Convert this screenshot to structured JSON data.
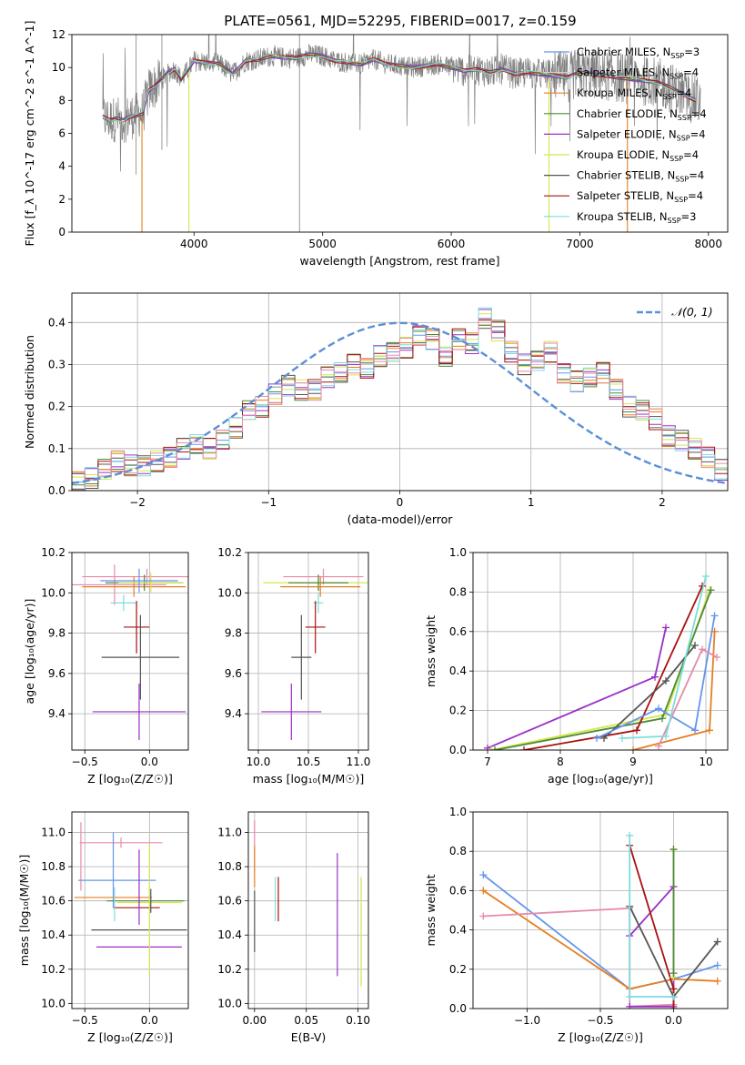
{
  "title": "PLATE=0561, MJD=52295, FIBERID=0017, z=0.159",
  "colors": {
    "chabrier_miles": "#6495ed",
    "salpeter_miles": "#d3d3d3",
    "kroupa_miles": "#e67e22",
    "chabrier_elodie": "#4d8a3a",
    "salpeter_elodie": "#9b30c7",
    "kroupa_elodie": "#d4e84a",
    "chabrier_stelib": "#555555",
    "salpeter_stelib": "#aa1111",
    "kroupa_stelib": "#7fdcdc",
    "pink": "#e88aa8",
    "data": "#808080"
  },
  "chart_data": [
    {
      "id": "spectrum",
      "type": "line",
      "xlabel": "wavelength [Angstrom, rest frame]",
      "ylabel": "Flux [f_λ 10^-17 erg cm^-2 s^-1 A^-1]",
      "xlim": [
        3050,
        8150
      ],
      "ylim": [
        0,
        12
      ],
      "xticks": [
        "4000",
        "5000",
        "6000",
        "7000",
        "8000"
      ],
      "yticks": [
        "0",
        "2",
        "4",
        "6",
        "8",
        "10",
        "12"
      ],
      "grid": false,
      "legend_position": "right",
      "legend": [
        {
          "label": "Chabrier MILES, N",
          "sub": "SSP",
          "tail": "=3",
          "color": "#6495ed"
        },
        {
          "label": "Salpeter MILES, N",
          "sub": "SSP",
          "tail": "=4",
          "color": "#d3d3d3"
        },
        {
          "label": "Kroupa MILES, N",
          "sub": "SSP",
          "tail": "=4",
          "color": "#e67e22"
        },
        {
          "label": "Chabrier ELODIE, N",
          "sub": "SSP",
          "tail": "=4",
          "color": "#4d8a3a"
        },
        {
          "label": "Salpeter ELODIE, N",
          "sub": "SSP",
          "tail": "=4",
          "color": "#9b30c7"
        },
        {
          "label": "Kroupa ELODIE, N",
          "sub": "SSP",
          "tail": "=4",
          "color": "#d4e84a"
        },
        {
          "label": "Chabrier STELIB, N",
          "sub": "SSP",
          "tail": "=4",
          "color": "#555555"
        },
        {
          "label": "Salpeter STELIB, N",
          "sub": "SSP",
          "tail": "=4",
          "color": "#aa1111"
        },
        {
          "label": "Kroupa STELIB, N",
          "sub": "SSP",
          "tail": "=3",
          "color": "#7fdcdc"
        }
      ],
      "model_curve": {
        "x": [
          3290,
          3350,
          3400,
          3450,
          3500,
          3550,
          3600,
          3650,
          3700,
          3750,
          3800,
          3850,
          3900,
          3950,
          4000,
          4100,
          4200,
          4300,
          4400,
          4500,
          4600,
          4700,
          4800,
          4900,
          5000,
          5100,
          5200,
          5300,
          5400,
          5500,
          5600,
          5700,
          5800,
          5900,
          6000,
          6100,
          6200,
          6300,
          6400,
          6500,
          6600,
          6700,
          6800,
          6900,
          7000,
          7100,
          7200,
          7300,
          7400,
          7500,
          7600,
          7700,
          7800,
          7900
        ],
        "y": [
          7.0,
          6.8,
          6.9,
          6.8,
          7.0,
          7.1,
          7.2,
          8.6,
          8.9,
          9.3,
          9.7,
          9.9,
          9.3,
          9.8,
          10.4,
          10.3,
          10.2,
          9.6,
          10.4,
          10.5,
          10.7,
          10.6,
          10.6,
          10.8,
          10.7,
          10.4,
          10.3,
          10.2,
          10.5,
          10.2,
          10.1,
          10.0,
          10.1,
          10.2,
          10.0,
          9.8,
          9.9,
          9.7,
          9.9,
          9.6,
          9.7,
          9.6,
          9.5,
          9.4,
          9.7,
          9.6,
          9.5,
          9.4,
          9.3,
          9.2,
          9.1,
          8.8,
          8.4,
          8.0
        ]
      },
      "drops": [
        {
          "x": 3595,
          "color": "#e67e22"
        },
        {
          "x": 3960,
          "color": "#d4e84a"
        },
        {
          "x": 6760,
          "color": "#d4e84a"
        },
        {
          "x": 7370,
          "color": "#e67e22"
        }
      ]
    },
    {
      "id": "residuals",
      "type": "bar",
      "xlabel": "(data-model)/error",
      "ylabel": "Normed distribution",
      "xlim": [
        -2.5,
        2.5
      ],
      "ylim": [
        0,
        0.47
      ],
      "xticks": [
        "−2",
        "−1",
        "0",
        "1",
        "2"
      ],
      "yticks": [
        "0.0",
        "0.1",
        "0.2",
        "0.3",
        "0.4"
      ],
      "grid": true,
      "legend_position": "top-right",
      "legend": [
        {
          "label": "𝒩(0, 1)",
          "style": "dashed",
          "color": "#5b8fd6"
        }
      ],
      "bin_width": 0.1,
      "bin_start": -2.5,
      "series": [
        {
          "name": "Chabrier MILES",
          "color": "#6495ed",
          "values": [
            0.02,
            0.03,
            0.05,
            0.07,
            0.06,
            0.06,
            0.07,
            0.08,
            0.1,
            0.11,
            0.1,
            0.12,
            0.15,
            0.19,
            0.2,
            0.23,
            0.25,
            0.24,
            0.24,
            0.27,
            0.28,
            0.3,
            0.29,
            0.32,
            0.33,
            0.34,
            0.37,
            0.36,
            0.32,
            0.36,
            0.35,
            0.41,
            0.38,
            0.33,
            0.3,
            0.31,
            0.33,
            0.28,
            0.26,
            0.27,
            0.28,
            0.24,
            0.2,
            0.19,
            0.17,
            0.13,
            0.12,
            0.1,
            0.08,
            0.05
          ]
        }
      ],
      "normal_curve": "N(0,1)"
    },
    {
      "id": "age_vs_Z",
      "type": "scatter",
      "xlabel": "Z [log₁₀(Z/Z☉)]",
      "ylabel": "age  [log₁₀(age/yr)]",
      "xlim": [
        -0.6,
        0.3
      ],
      "ylim": [
        9.22,
        10.2
      ],
      "xticks": [
        "−0.5",
        "0.0"
      ],
      "yticks": [
        "9.4",
        "9.6",
        "9.8",
        "10.0",
        "10.2"
      ],
      "grid": true,
      "points": [
        {
          "x": -0.27,
          "y": 10.04,
          "xerr": 0.4,
          "yerr": 0.1,
          "color": "#e88aa8"
        },
        {
          "x": -0.02,
          "y": 10.08,
          "xerr": 0.5,
          "yerr": 0.04,
          "color": "#e88aa8"
        },
        {
          "x": -0.12,
          "y": 10.03,
          "xerr": 0.4,
          "yerr": 0.05,
          "color": "#e67e22"
        },
        {
          "x": -0.04,
          "y": 10.05,
          "xerr": 0.3,
          "yerr": 0.04,
          "color": "#4d8a3a"
        },
        {
          "x": 0.01,
          "y": 10.05,
          "xerr": 0.25,
          "yerr": 0.05,
          "color": "#d4e84a"
        },
        {
          "x": -0.08,
          "y": 10.06,
          "xerr": 0.3,
          "yerr": 0.06,
          "color": "#6495ed"
        },
        {
          "x": -0.2,
          "y": 9.95,
          "xerr": 0.1,
          "yerr": 0.04,
          "color": "#7fdcdc"
        },
        {
          "x": -0.1,
          "y": 9.83,
          "xerr": 0.1,
          "yerr": 0.13,
          "color": "#aa1111"
        },
        {
          "x": -0.07,
          "y": 9.68,
          "xerr": 0.3,
          "yerr": 0.21,
          "color": "#555555"
        },
        {
          "x": -0.08,
          "y": 9.41,
          "xerr": 0.36,
          "yerr": 0.14,
          "color": "#9b30c7"
        }
      ]
    },
    {
      "id": "age_vs_mass",
      "type": "scatter",
      "xlabel": "mass [log₁₀(M/M☉)]",
      "ylabel": "",
      "xlim": [
        9.9,
        11.1
      ],
      "ylim": [
        9.22,
        10.2
      ],
      "xticks": [
        "10.0",
        "10.5",
        "11.0"
      ],
      "yticks": [
        "9.4",
        "9.6",
        "9.8",
        "10.0",
        "10.2"
      ],
      "grid": true,
      "points": [
        {
          "x": 10.65,
          "y": 10.08,
          "xerr": 0.4,
          "yerr": 0.04,
          "color": "#e88aa8"
        },
        {
          "x": 10.6,
          "y": 10.05,
          "xerr": 0.55,
          "yerr": 0.04,
          "color": "#d4e84a"
        },
        {
          "x": 10.6,
          "y": 10.05,
          "xerr": 0.3,
          "yerr": 0.04,
          "color": "#4d8a3a"
        },
        {
          "x": 10.62,
          "y": 10.03,
          "xerr": 0.4,
          "yerr": 0.05,
          "color": "#e67e22"
        },
        {
          "x": 10.6,
          "y": 9.95,
          "xerr": 0.05,
          "yerr": 0.05,
          "color": "#7fdcdc"
        },
        {
          "x": 10.57,
          "y": 9.83,
          "xerr": 0.1,
          "yerr": 0.13,
          "color": "#aa1111"
        },
        {
          "x": 10.43,
          "y": 9.68,
          "xerr": 0.1,
          "yerr": 0.21,
          "color": "#555555"
        },
        {
          "x": 10.33,
          "y": 9.41,
          "xerr": 0.3,
          "yerr": 0.14,
          "color": "#9b30c7"
        }
      ]
    },
    {
      "id": "weight_vs_age",
      "type": "line",
      "xlabel": "age  [log₁₀(age/yr)]",
      "ylabel": "mass weight",
      "xlim": [
        6.8,
        10.3
      ],
      "ylim": [
        0,
        1
      ],
      "xticks": [
        "7",
        "8",
        "9",
        "10"
      ],
      "yticks": [
        "0.0",
        "0.2",
        "0.4",
        "0.6",
        "0.8",
        "1.0"
      ],
      "grid": true,
      "series": [
        {
          "color": "#9b30c7",
          "x": [
            7.0,
            9.3,
            9.45
          ],
          "y": [
            0.01,
            0.37,
            0.62
          ]
        },
        {
          "color": "#d4e84a",
          "x": [
            7.05,
            9.45,
            10.05
          ],
          "y": [
            0.0,
            0.18,
            0.81
          ]
        },
        {
          "color": "#4d8a3a",
          "x": [
            7.1,
            9.4,
            10.07
          ],
          "y": [
            0.0,
            0.16,
            0.81
          ]
        },
        {
          "color": "#aa1111",
          "x": [
            7.5,
            9.05,
            9.95
          ],
          "y": [
            0.0,
            0.1,
            0.83
          ]
        },
        {
          "color": "#555555",
          "x": [
            8.6,
            9.45,
            9.85
          ],
          "y": [
            0.06,
            0.35,
            0.53
          ]
        },
        {
          "color": "#6495ed",
          "x": [
            8.5,
            9.35,
            9.85,
            10.12
          ],
          "y": [
            0.06,
            0.21,
            0.1,
            0.68
          ]
        },
        {
          "color": "#e67e22",
          "x": [
            9.0,
            10.05,
            10.12
          ],
          "y": [
            0.0,
            0.1,
            0.6
          ]
        },
        {
          "color": "#e88aa8",
          "x": [
            9.35,
            9.95,
            10.15
          ],
          "y": [
            0.02,
            0.51,
            0.47
          ]
        },
        {
          "color": "#7fdcdc",
          "x": [
            8.85,
            9.45,
            10.0
          ],
          "y": [
            0.06,
            0.07,
            0.88
          ]
        }
      ]
    },
    {
      "id": "mass_vs_Z",
      "type": "scatter",
      "xlabel": "Z [log₁₀(Z/Z☉)]",
      "ylabel": "mass [log₁₀(M/M☉)]",
      "xlim": [
        -0.6,
        0.3
      ],
      "ylim": [
        9.97,
        11.12
      ],
      "xticks": [
        "−0.5",
        "0.0"
      ],
      "yticks": [
        "10.0",
        "10.2",
        "10.4",
        "10.6",
        "10.8",
        "11.0"
      ],
      "grid": true,
      "points": [
        {
          "x": -0.22,
          "y": 10.94,
          "xerr": 0.32,
          "yerr": 0.03,
          "color": "#e88aa8"
        },
        {
          "x": -0.53,
          "y": 10.86,
          "xerr": 0.0,
          "yerr": 0.2,
          "color": "#e88aa8"
        },
        {
          "x": -0.25,
          "y": 10.72,
          "xerr": 0.3,
          "yerr": 0.0,
          "color": "#6495ed"
        },
        {
          "x": -0.28,
          "y": 10.78,
          "xerr": 0.0,
          "yerr": 0.22,
          "color": "#6495ed"
        },
        {
          "x": -0.28,
          "y": 10.62,
          "xerr": 0.3,
          "yerr": 0.0,
          "color": "#e67e22"
        },
        {
          "x": -0.03,
          "y": 10.6,
          "xerr": 0.3,
          "yerr": 0.0,
          "color": "#4d8a3a"
        },
        {
          "x": 0.0,
          "y": 10.59,
          "xerr": 0.25,
          "yerr": 0.0,
          "color": "#d4e84a"
        },
        {
          "x": -0.1,
          "y": 10.56,
          "xerr": 0.18,
          "yerr": 0.0,
          "color": "#aa1111"
        },
        {
          "x": -0.08,
          "y": 10.43,
          "xerr": 0.37,
          "yerr": 0.0,
          "color": "#555555"
        },
        {
          "x": -0.08,
          "y": 10.33,
          "xerr": 0.33,
          "yerr": 0.0,
          "color": "#9b30c7"
        },
        {
          "x": -0.08,
          "y": 10.68,
          "xerr": 0.0,
          "yerr": 0.22,
          "color": "#9b30c7"
        },
        {
          "x": 0.0,
          "y": 10.55,
          "xerr": 0.0,
          "yerr": 0.38,
          "color": "#d4e84a"
        },
        {
          "x": 0.01,
          "y": 10.6,
          "xerr": 0.0,
          "yerr": 0.07,
          "color": "#555555"
        },
        {
          "x": -0.27,
          "y": 10.58,
          "xerr": 0.0,
          "yerr": 0.1,
          "color": "#7fdcdc"
        }
      ]
    },
    {
      "id": "mass_vs_ebv",
      "type": "scatter",
      "xlabel": "E(B-V)",
      "ylabel": "",
      "xlim": [
        -0.006,
        0.11
      ],
      "ylim": [
        9.97,
        11.12
      ],
      "xticks": [
        "0.00",
        "0.05",
        "0.10"
      ],
      "yticks": [
        "10.0",
        "10.2",
        "10.4",
        "10.6",
        "10.8",
        "11.0"
      ],
      "grid": true,
      "points": [
        {
          "x": 0.0,
          "y": 10.92,
          "yerr": 0.15,
          "color": "#e88aa8"
        },
        {
          "x": 0.0,
          "y": 10.8,
          "yerr": 0.12,
          "color": "#e67e22"
        },
        {
          "x": 0.0,
          "y": 10.48,
          "yerr": 0.18,
          "color": "#555555"
        },
        {
          "x": 0.02,
          "y": 10.61,
          "yerr": 0.13,
          "color": "#7fdcdc"
        },
        {
          "x": 0.023,
          "y": 10.61,
          "yerr": 0.13,
          "color": "#aa1111"
        },
        {
          "x": 0.08,
          "y": 10.52,
          "yerr": 0.36,
          "color": "#9b30c7"
        },
        {
          "x": 0.103,
          "y": 10.42,
          "yerr": 0.32,
          "color": "#d4e84a"
        }
      ]
    },
    {
      "id": "weight_vs_Z",
      "type": "line",
      "xlabel": "Z [log₁₀(Z/Z☉)]",
      "ylabel": "mass weight",
      "xlim": [
        -1.37,
        0.37
      ],
      "ylim": [
        0,
        1
      ],
      "xticks": [
        "−1.0",
        "−0.5",
        "0.0"
      ],
      "yticks": [
        "0.0",
        "0.2",
        "0.4",
        "0.6",
        "0.8",
        "1.0"
      ],
      "grid": true,
      "series": [
        {
          "color": "#6495ed",
          "x": [
            -1.3,
            -0.3,
            0.0,
            0.3
          ],
          "y": [
            0.68,
            0.1,
            0.15,
            0.22
          ]
        },
        {
          "color": "#e67e22",
          "x": [
            -1.3,
            -0.3,
            0.0,
            0.3
          ],
          "y": [
            0.6,
            0.1,
            0.15,
            0.14
          ]
        },
        {
          "color": "#e88aa8",
          "x": [
            -1.3,
            -0.3,
            -0.3,
            0.0
          ],
          "y": [
            0.47,
            0.51,
            0.01,
            0.02
          ]
        },
        {
          "color": "#9b30c7",
          "x": [
            -0.3,
            0.0,
            0.0,
            -0.3
          ],
          "y": [
            0.37,
            0.62,
            0.01,
            0.01
          ]
        },
        {
          "color": "#aa1111",
          "x": [
            -0.3,
            0.0,
            0.0
          ],
          "y": [
            0.83,
            0.1,
            0.0
          ]
        },
        {
          "color": "#555555",
          "x": [
            -0.3,
            0.0,
            0.3
          ],
          "y": [
            0.52,
            0.06,
            0.34
          ]
        },
        {
          "color": "#d4e84a",
          "x": [
            0.0,
            0.0
          ],
          "y": [
            0.81,
            0.16
          ]
        },
        {
          "color": "#4d8a3a",
          "x": [
            0.0,
            0.0
          ],
          "y": [
            0.81,
            0.18
          ]
        },
        {
          "color": "#7fdcdc",
          "x": [
            -0.3,
            -0.3,
            0.0
          ],
          "y": [
            0.88,
            0.06,
            0.06
          ]
        }
      ]
    }
  ]
}
